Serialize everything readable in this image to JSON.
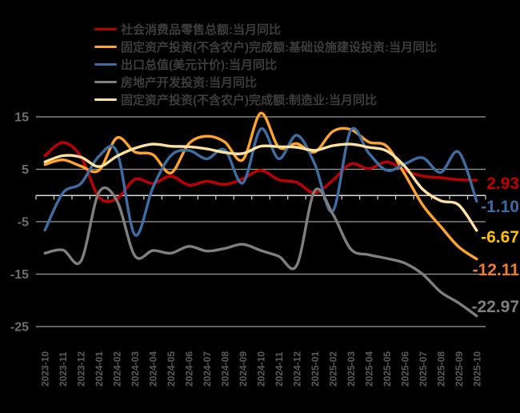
{
  "chart_data": {
    "type": "line",
    "title": "",
    "xlabel": "",
    "ylabel": "",
    "ylim": [
      -27,
      17
    ],
    "grid": "horizontal-only",
    "legend_position": "top-left",
    "y_ticks": [
      "15",
      "5",
      "-5",
      "-15",
      "-25"
    ],
    "y_tick_values": [
      15,
      5,
      -5,
      -15,
      -25
    ],
    "categories": [
      "2023-10",
      "2023-11",
      "2023-12",
      "2024-01",
      "2024-02",
      "2024-03",
      "2024-04",
      "2024-05",
      "2024-06",
      "2024-07",
      "2024-08",
      "2024-09",
      "2024-10",
      "2024-11",
      "2024-12",
      "2025-01",
      "2025-02",
      "2025-03",
      "2025-04",
      "2025-05",
      "2025-06",
      "2025-07",
      "2025-08",
      "2025-09",
      "2025-10"
    ],
    "series": [
      {
        "name": "社会消费品零售总额:当月同比",
        "color": "#C00000",
        "values": [
          7.6,
          10.1,
          7.4,
          -0.3,
          -0.6,
          3.1,
          2.3,
          3.7,
          2.0,
          2.7,
          2.1,
          3.2,
          4.8,
          3.0,
          2.5,
          0.5,
          2.9,
          6.0,
          5.1,
          6.4,
          4.8,
          3.7,
          3.4,
          3.0,
          2.93
        ]
      },
      {
        "name": "固定资产投资(不含农户)完成额:基础设施建设投资:当月同比",
        "color": "#FFA428",
        "values": [
          5.9,
          6.8,
          5.6,
          4.8,
          11.0,
          8.3,
          7.8,
          4.3,
          9.9,
          11.3,
          10.2,
          6.8,
          15.7,
          9.2,
          9.9,
          8.3,
          12.2,
          12.6,
          10.2,
          9.4,
          4.1,
          -1.8,
          -5.9,
          -9.8,
          -12.11
        ]
      },
      {
        "name": "出口总值(美元计价):当月同比",
        "color": "#3D6DA3",
        "values": [
          -6.6,
          0.5,
          2.3,
          7.5,
          8.3,
          -7.5,
          1.5,
          7.6,
          8.6,
          7.0,
          8.7,
          2.4,
          12.7,
          7.0,
          11.5,
          6.0,
          -3.0,
          12.4,
          8.1,
          4.8,
          6.0,
          7.2,
          4.4,
          8.3,
          -1.1
        ]
      },
      {
        "name": "房地产开发投资:当月同比",
        "color": "#7F7F7F",
        "values": [
          -11.0,
          -10.4,
          -12.5,
          0.6,
          -1.0,
          -11.5,
          -10.5,
          -11.0,
          -9.7,
          -10.6,
          -10.1,
          -9.3,
          -10.5,
          -11.6,
          -13.3,
          0.9,
          -3.5,
          -10.2,
          -11.3,
          -12.0,
          -12.9,
          -15.0,
          -18.4,
          -20.5,
          -22.97
        ]
      },
      {
        "name": "固定资产投资(不含农户)完成额:制造业:当月同比",
        "color": "#FFE2A0",
        "values": [
          6.4,
          7.6,
          7.3,
          5.5,
          7.5,
          9.0,
          9.8,
          9.4,
          9.3,
          8.9,
          8.2,
          8.0,
          9.4,
          9.3,
          9.2,
          8.6,
          9.5,
          9.8,
          9.2,
          8.5,
          5.6,
          1.2,
          -1.0,
          -1.8,
          -6.67
        ]
      }
    ],
    "end_labels": [
      {
        "text": "2.93",
        "color": "#C00000",
        "series": "社会消费品零售总额:当月同比"
      },
      {
        "text": "-12.11",
        "color": "#ED7D31",
        "series": "固定资产投资(不含农户)完成额:基础设施建设投资:当月同比"
      },
      {
        "text": "-1.10",
        "color": "#3A6BA5",
        "series": "出口总值(美元计价):当月同比"
      },
      {
        "text": "-22.97",
        "color": "#7F7F7F",
        "series": "房地产开发投资:当月同比"
      },
      {
        "text": "-6.67",
        "color": "#FFC000",
        "series": "固定资产投资(不含农户)完成额:制造业:当月同比"
      }
    ]
  },
  "colors": {
    "background": "#000000",
    "gridline": "#9b9b9b",
    "zero_axis": "#d8d8d8",
    "y_tick_label": "#6e6e6e",
    "x_tick_label": "#5a5a5a",
    "legend_text": "#3d3d3d"
  }
}
